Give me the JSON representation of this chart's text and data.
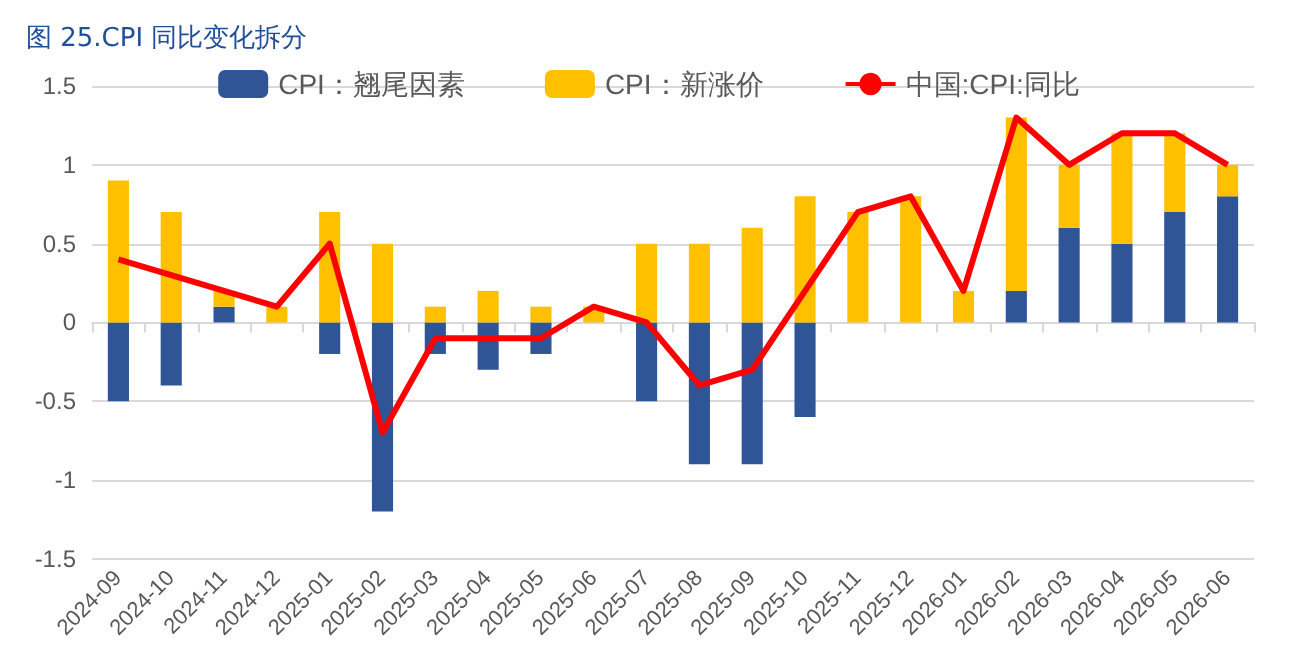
{
  "chart_data": {
    "type": "bar",
    "title": "图 25.CPI 同比变化拆分",
    "stacked": true,
    "categories": [
      "2024-09",
      "2024-10",
      "2024-11",
      "2024-12",
      "2025-01",
      "2025-02",
      "2025-03",
      "2025-04",
      "2025-05",
      "2025-06",
      "2025-07",
      "2025-08",
      "2025-09",
      "2025-10",
      "2025-11",
      "2025-12",
      "2026-01",
      "2026-02",
      "2026-03",
      "2026-04",
      "2026-05",
      "2026-06"
    ],
    "series": [
      {
        "name": "CPI：翘尾因素",
        "color": "#2f5597",
        "values": [
          -0.5,
          -0.4,
          0.1,
          0,
          -0.2,
          -1.2,
          -0.2,
          -0.3,
          -0.2,
          0,
          -0.5,
          -0.9,
          -0.9,
          -0.6,
          0,
          0,
          0,
          0.2,
          0.6,
          0.5,
          0.7,
          0.8
        ]
      },
      {
        "name": "CPI：新涨价",
        "color": "#ffc000",
        "values": [
          0.9,
          0.7,
          0.1,
          0.1,
          0.7,
          0.5,
          0.1,
          0.2,
          0.1,
          0.1,
          0.5,
          0.5,
          0.6,
          0.8,
          0.7,
          0.8,
          0.2,
          1.1,
          0.4,
          0.7,
          0.5,
          0.2
        ]
      },
      {
        "name": "中国:CPI:同比",
        "type": "line",
        "color": "#ff0000",
        "values": [
          0.4,
          0.3,
          0.2,
          0.1,
          0.5,
          -0.7,
          -0.1,
          -0.1,
          -0.1,
          0.1,
          0,
          -0.4,
          -0.3,
          0.2,
          0.7,
          0.8,
          0.2,
          1.3,
          1.0,
          1.2,
          1.2,
          1.0
        ]
      }
    ],
    "ylim": [
      -1.5,
      1.5
    ],
    "yticks": [
      -1.5,
      -1,
      -0.5,
      0,
      0.5,
      1,
      1.5
    ],
    "grid": "y",
    "legend": "top",
    "marker": "none"
  }
}
